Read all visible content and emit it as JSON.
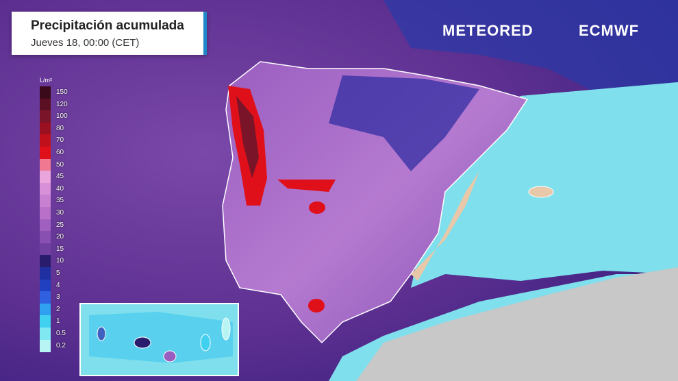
{
  "header": {
    "title": "Precipitación acumulada",
    "subtitle": "Jueves 18, 00:00 (CET)"
  },
  "brand": {
    "left": "METEORED",
    "right": "ECMWF"
  },
  "legend": {
    "unit": "L/m²",
    "items": [
      {
        "label": 150,
        "color": "#3a0a1a"
      },
      {
        "label": 120,
        "color": "#5a0f22"
      },
      {
        "label": 100,
        "color": "#7a1428"
      },
      {
        "label": 80,
        "color": "#9a1020"
      },
      {
        "label": 70,
        "color": "#c0101c"
      },
      {
        "label": 60,
        "color": "#e0101a"
      },
      {
        "label": 50,
        "color": "#f07890"
      },
      {
        "label": 45,
        "color": "#eaa6dc"
      },
      {
        "label": 40,
        "color": "#d890d8"
      },
      {
        "label": 35,
        "color": "#c880d0"
      },
      {
        "label": 30,
        "color": "#b870c8"
      },
      {
        "label": 25,
        "color": "#a060c0"
      },
      {
        "label": 20,
        "color": "#8850b0"
      },
      {
        "label": 15,
        "color": "#7040a0"
      },
      {
        "label": 10,
        "color": "#2a1c6c"
      },
      {
        "label": 5,
        "color": "#2030a0"
      },
      {
        "label": 4,
        "color": "#2040c0"
      },
      {
        "label": 3,
        "color": "#3060e0"
      },
      {
        "label": 2,
        "color": "#30a0f0"
      },
      {
        "label": 1,
        "color": "#40d0f0"
      },
      {
        "label": 0.5,
        "color": "#80e8f0"
      },
      {
        "label": 0.2,
        "color": "#b8f4f4"
      }
    ]
  }
}
